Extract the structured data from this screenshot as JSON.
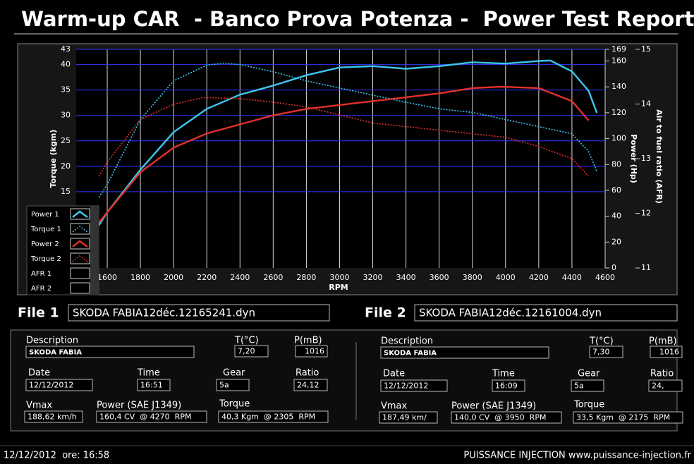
{
  "title": "Warm-up CAR  - Banco Prova Potenza -  Power Test Report",
  "chart_data": {
    "type": "line",
    "x_label": "RPM",
    "y_label": "Torque (kgm)",
    "y2_label": "Power (Hp)",
    "y3_label": "Air to fuel ratio (AFR)",
    "xlim": [
      1413,
      4600
    ],
    "xticks": [
      1600,
      1800,
      2000,
      2200,
      2400,
      2600,
      2800,
      3000,
      3200,
      3400,
      3600,
      3800,
      4000,
      4200,
      4400,
      4600
    ],
    "ylim": [
      0,
      43
    ],
    "yticks": [
      15,
      20,
      25,
      30,
      35,
      40,
      43
    ],
    "y2lim": [
      0,
      169
    ],
    "y2ticks": [
      0,
      20,
      40,
      60,
      80,
      100,
      120,
      140,
      160,
      169
    ],
    "y3lim": [
      11,
      15
    ],
    "y3ticks": [
      11,
      12,
      13,
      14,
      15
    ],
    "grid": true,
    "series": [
      {
        "name": "Power 1",
        "color": "#3cc6f2",
        "axis": "y2",
        "line_style": "solid",
        "x": [
          1550,
          1600,
          1800,
          2000,
          2200,
          2400,
          2600,
          2800,
          3000,
          3200,
          3400,
          3600,
          3800,
          4000,
          4200,
          4270,
          4400,
          4500,
          4550
        ],
        "values": [
          33,
          43,
          76,
          105,
          123,
          134,
          141,
          149,
          155,
          156,
          154,
          156,
          159,
          158,
          160,
          160.4,
          152,
          137,
          120
        ]
      },
      {
        "name": "Torque 1",
        "color": "#3cc6f2",
        "axis": "y",
        "line_style": "dotted",
        "x": [
          1550,
          1600,
          1800,
          2000,
          2200,
          2305,
          2400,
          2600,
          2800,
          3000,
          3200,
          3400,
          3600,
          3800,
          4000,
          4200,
          4400,
          4500,
          4550
        ],
        "values": [
          13.9,
          16.4,
          29.2,
          36.8,
          39.9,
          40.3,
          40,
          38.6,
          36.8,
          35.4,
          34,
          32.6,
          31.3,
          30.6,
          29.2,
          27.8,
          26.4,
          22.9,
          19
        ]
      },
      {
        "name": "Power 2",
        "color": "#e2312a",
        "axis": "y2",
        "line_style": "solid",
        "x": [
          1550,
          1600,
          1800,
          2000,
          2200,
          2400,
          2600,
          2800,
          3000,
          3200,
          3400,
          3600,
          3800,
          3950,
          4000,
          4200,
          4400,
          4500
        ],
        "values": [
          35,
          43,
          74,
          93,
          104,
          111,
          118,
          123,
          126,
          129,
          132,
          135,
          139,
          140,
          140,
          139,
          129,
          114
        ]
      },
      {
        "name": "Torque 2",
        "color": "#e2312a",
        "axis": "y",
        "line_style": "dotted",
        "x": [
          1550,
          1600,
          1800,
          2000,
          2175,
          2200,
          2400,
          2600,
          2800,
          3000,
          3200,
          3400,
          3600,
          3800,
          4000,
          4200,
          4400,
          4500
        ],
        "values": [
          18,
          20.8,
          29.2,
          32.2,
          33.5,
          33.5,
          33.3,
          32.6,
          31.7,
          30.1,
          28.5,
          27.8,
          27.1,
          26.4,
          25.7,
          23.9,
          21.5,
          18.1
        ]
      },
      {
        "name": "AFR 1",
        "axis": "y3",
        "x": [],
        "values": []
      },
      {
        "name": "AFR 2",
        "axis": "y3",
        "x": [],
        "values": []
      }
    ]
  },
  "files": [
    {
      "label": "File 1",
      "filename": "SKODA FABIA12déc.12165241.dyn",
      "fields": [
        {
          "label": "Description",
          "value": "SKODA FABIA"
        },
        {
          "label": "T(°C)",
          "value": "7,20"
        },
        {
          "label": "P(mB)",
          "value": "1016"
        },
        {
          "label": "Date",
          "value": "12/12/2012"
        },
        {
          "label": "Time",
          "value": "16:51"
        },
        {
          "label": "Gear",
          "value": "5a"
        },
        {
          "label": "Ratio",
          "value": "24,12"
        },
        {
          "label": "Vmax",
          "value": "188,62 km/h"
        },
        {
          "label": "Power (SAE J1349)",
          "value": "160,4 CV  @ 4270  RPM"
        },
        {
          "label": "Torque",
          "value": "40,3 Kgm  @ 2305  RPM"
        }
      ]
    },
    {
      "label": "File 2",
      "filename": "SKODA FABIA12déc.12161004.dyn",
      "fields": [
        {
          "label": "Description",
          "value": "SKODA FABIA"
        },
        {
          "label": "T(°C)",
          "value": "7,30"
        },
        {
          "label": "P(mB)",
          "value": "1016"
        },
        {
          "label": "Date",
          "value": "12/12/2012"
        },
        {
          "label": "Time",
          "value": "16:09"
        },
        {
          "label": "Gear",
          "value": "5a"
        },
        {
          "label": "Ratio",
          "value": "24,"
        },
        {
          "label": "Vmax",
          "value": "187,49 km/"
        },
        {
          "label": "Power (SAE J1349)",
          "value": "140,0 CV  @ 3950  RPM"
        },
        {
          "label": "Torque",
          "value": "33,5 Kgm  @ 2175  RPM"
        }
      ]
    }
  ],
  "footer": {
    "date_time": "12/12/2012  ore: 16:58",
    "brand": "PUISSANCE INJECTION www.puissance-injection.fr"
  }
}
